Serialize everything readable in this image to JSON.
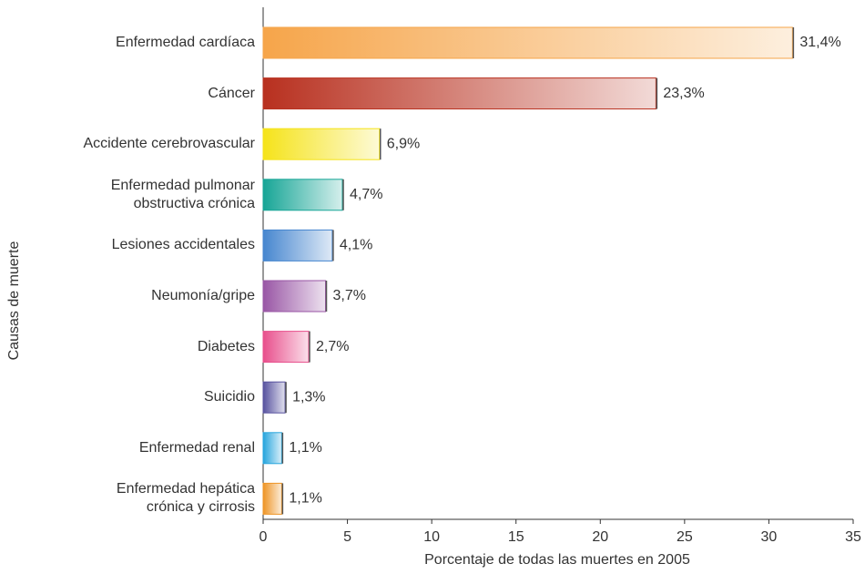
{
  "chart_data": {
    "type": "barh",
    "xlabel": "Porcentaje de todas las muertes en 2005",
    "ylabel": "Causas de muerte",
    "categories": [
      "Enfermedad cardíaca",
      "Cáncer",
      "Accidente cerebrovascular",
      "Enfermedad pulmonar\nobstructiva crónica",
      "Lesiones accidentales",
      "Neumonía/gripe",
      "Diabetes",
      "Suicidio",
      "Enfermedad renal",
      "Enfermedad hepática\ncrónica y cirrosis"
    ],
    "values": [
      31.4,
      23.3,
      6.9,
      4.7,
      4.1,
      3.7,
      2.7,
      1.3,
      1.1,
      1.1
    ],
    "value_labels": [
      "31,4%",
      "23,3%",
      "6,9%",
      "4,7%",
      "4,1%",
      "3,7%",
      "2,7%",
      "1,3%",
      "1,1%",
      "1,1%"
    ],
    "colors": [
      "#f6a54a",
      "#b8301f",
      "#f5e31a",
      "#16a596",
      "#4686cf",
      "#9956a5",
      "#e84f8c",
      "#57529f",
      "#27a5dd",
      "#ee9526"
    ],
    "xlim": [
      0,
      35
    ],
    "xticks": [
      0,
      5,
      10,
      15,
      20,
      25,
      30,
      35
    ],
    "grid": false
  }
}
